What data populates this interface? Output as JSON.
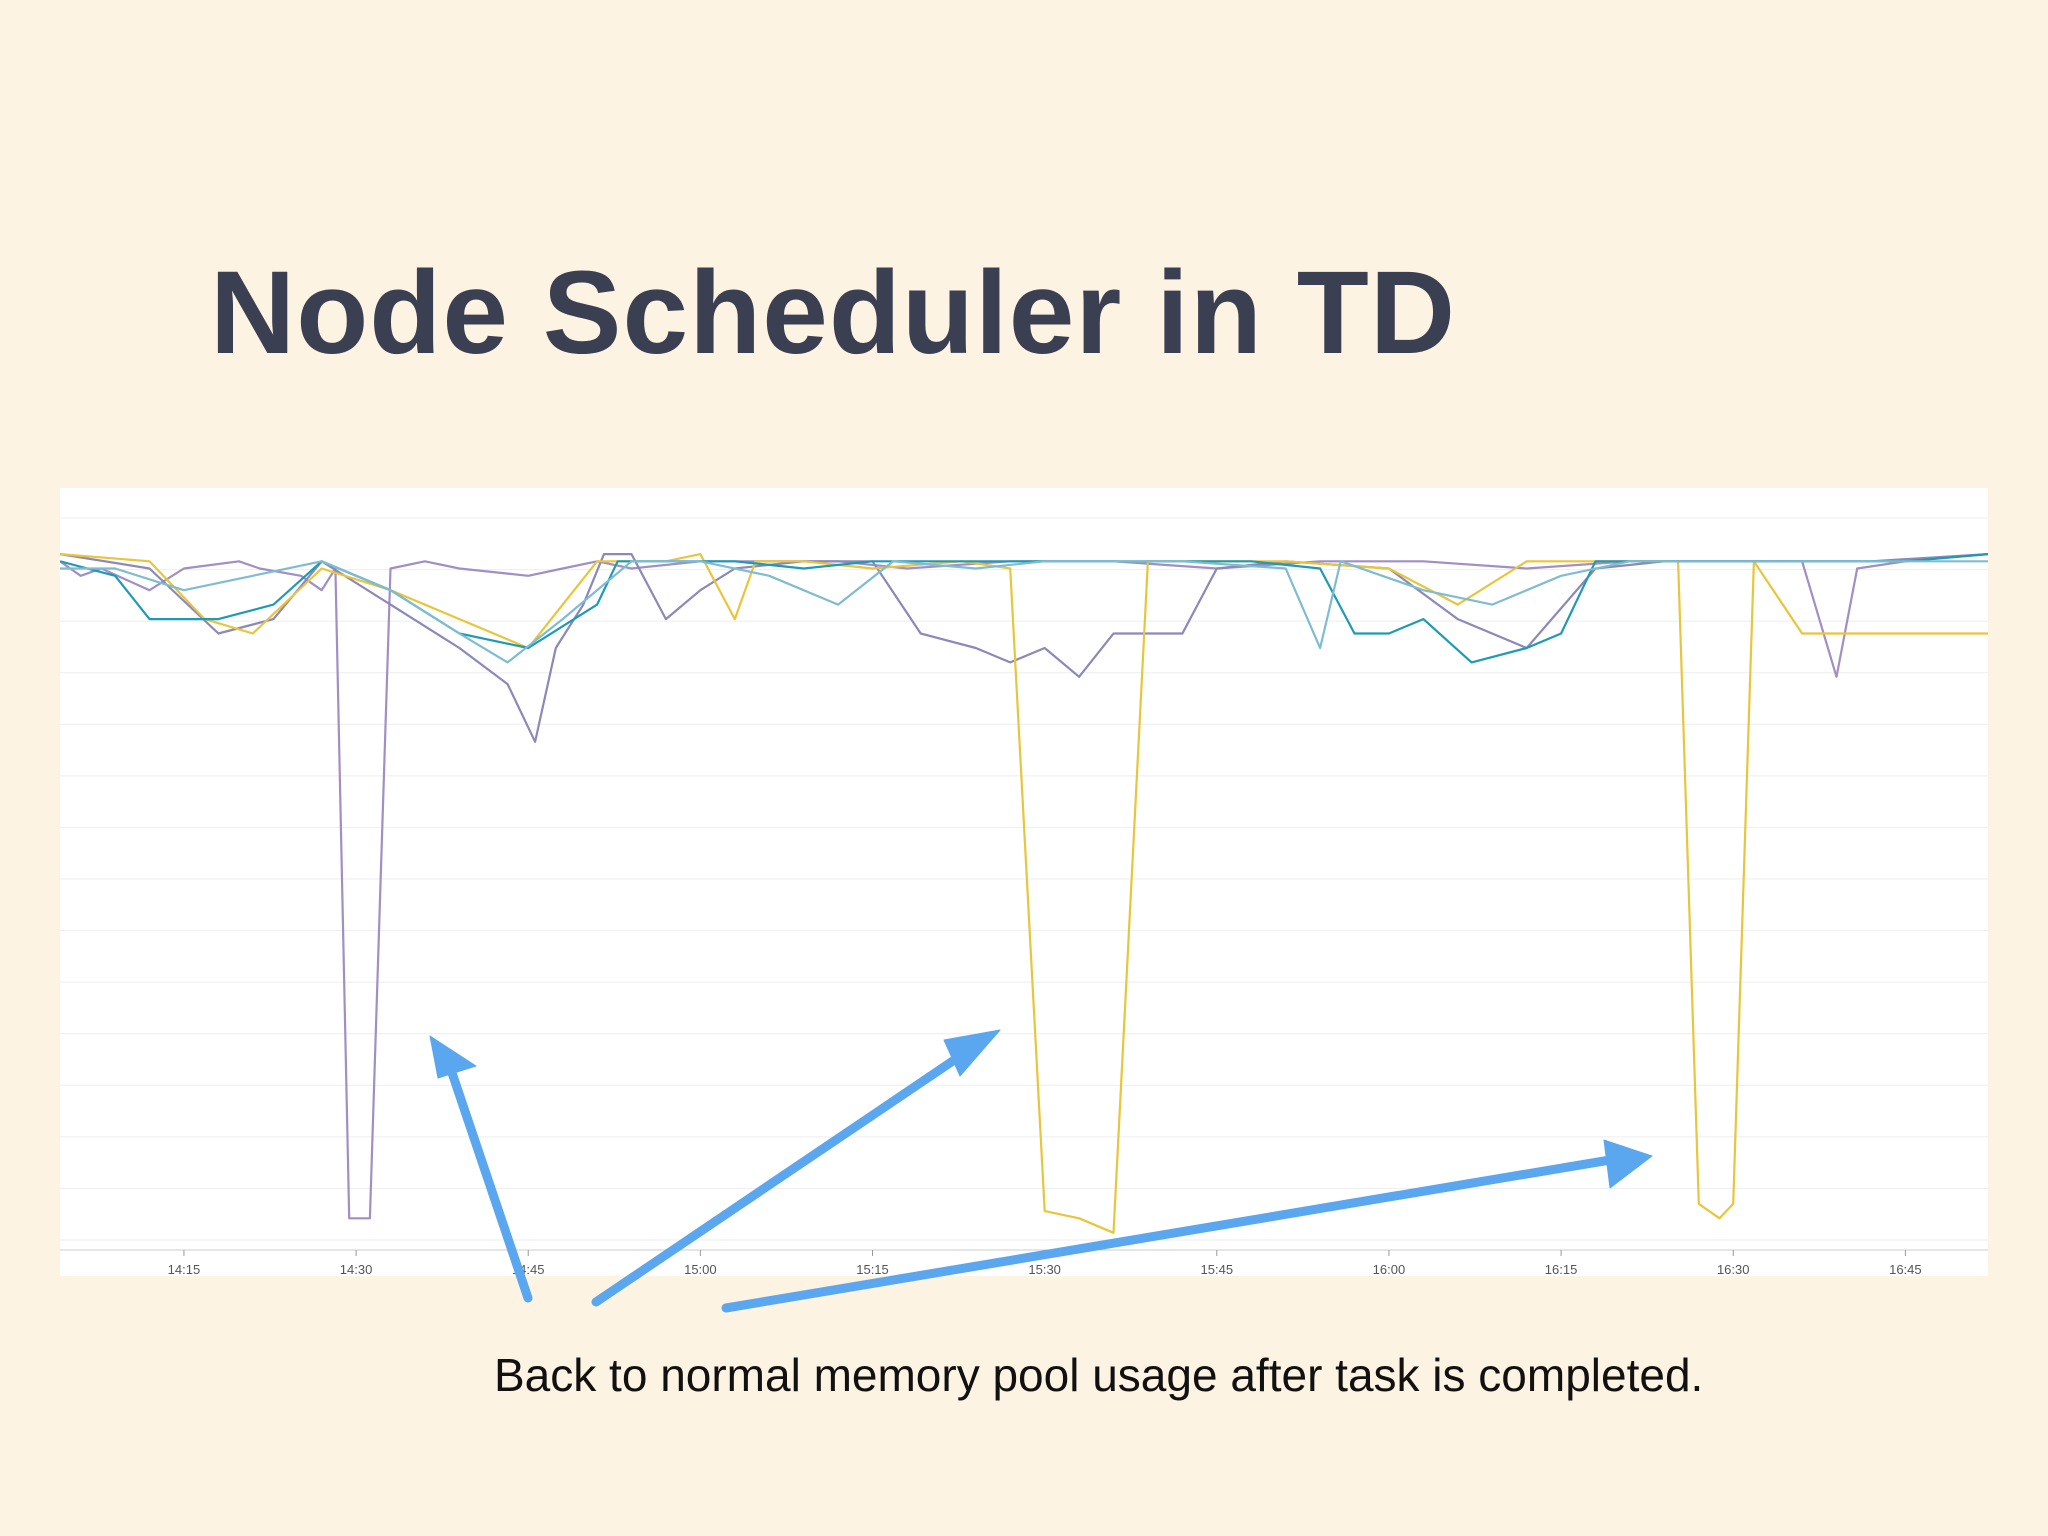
{
  "slide": {
    "title": "Node Scheduler in TD",
    "caption": "Back to normal memory pool usage after task is completed."
  },
  "chart_data": {
    "type": "line",
    "title": "",
    "xlabel": "",
    "ylabel": "",
    "x_ticks": [
      "14:15",
      "14:30",
      "14:45",
      "15:00",
      "15:15",
      "15:30",
      "15:45",
      "16:00",
      "16:15",
      "16:30",
      "16:45"
    ],
    "x_range_minutes": [
      14.07,
      16.87
    ],
    "ylim": [
      0,
      100
    ],
    "grid": true,
    "legend": "none",
    "colors": [
      "#a08fc4",
      "#e8c53a",
      "#1f9ab5",
      "#7fbcd1",
      "#8c88b8"
    ],
    "series": [
      {
        "color": "#a08fc4",
        "points": [
          [
            14.07,
            94
          ],
          [
            14.1,
            92
          ],
          [
            14.13,
            93
          ],
          [
            14.2,
            90
          ],
          [
            14.25,
            93
          ],
          [
            14.33,
            94
          ],
          [
            14.36,
            93
          ],
          [
            14.42,
            92
          ],
          [
            14.45,
            90
          ],
          [
            14.47,
            93
          ],
          [
            14.49,
            3
          ],
          [
            14.52,
            3
          ],
          [
            14.55,
            93
          ],
          [
            14.6,
            94
          ],
          [
            14.65,
            93
          ],
          [
            14.75,
            92
          ],
          [
            14.8,
            93
          ],
          [
            14.85,
            94
          ],
          [
            14.9,
            93
          ],
          [
            15.0,
            94
          ],
          [
            15.2,
            94
          ],
          [
            15.3,
            93
          ],
          [
            15.45,
            94
          ],
          [
            15.6,
            94
          ],
          [
            15.75,
            93
          ],
          [
            15.9,
            94
          ],
          [
            16.05,
            94
          ],
          [
            16.2,
            93
          ],
          [
            16.35,
            94
          ],
          [
            16.5,
            94
          ],
          [
            16.6,
            94
          ],
          [
            16.65,
            78
          ],
          [
            16.68,
            93
          ],
          [
            16.75,
            94
          ],
          [
            16.87,
            95
          ]
        ]
      },
      {
        "color": "#8c88b8",
        "points": [
          [
            14.07,
            95
          ],
          [
            14.2,
            93
          ],
          [
            14.3,
            84
          ],
          [
            14.38,
            86
          ],
          [
            14.45,
            94
          ],
          [
            14.55,
            88
          ],
          [
            14.65,
            82
          ],
          [
            14.72,
            77
          ],
          [
            14.76,
            69
          ],
          [
            14.79,
            82
          ],
          [
            14.83,
            88
          ],
          [
            14.86,
            95
          ],
          [
            14.9,
            95
          ],
          [
            14.95,
            86
          ],
          [
            15.0,
            90
          ],
          [
            15.05,
            93
          ],
          [
            15.15,
            94
          ],
          [
            15.25,
            94
          ],
          [
            15.32,
            84
          ],
          [
            15.4,
            82
          ],
          [
            15.45,
            80
          ],
          [
            15.5,
            82
          ],
          [
            15.55,
            78
          ],
          [
            15.6,
            84
          ],
          [
            15.7,
            84
          ],
          [
            15.75,
            93
          ],
          [
            15.85,
            94
          ],
          [
            16.0,
            93
          ],
          [
            16.1,
            86
          ],
          [
            16.2,
            82
          ],
          [
            16.3,
            93
          ],
          [
            16.4,
            94
          ],
          [
            16.55,
            94
          ],
          [
            16.7,
            94
          ],
          [
            16.87,
            95
          ]
        ]
      },
      {
        "color": "#e8c53a",
        "points": [
          [
            14.07,
            95
          ],
          [
            14.2,
            94
          ],
          [
            14.28,
            86
          ],
          [
            14.35,
            84
          ],
          [
            14.45,
            93
          ],
          [
            14.55,
            90
          ],
          [
            14.65,
            86
          ],
          [
            14.75,
            82
          ],
          [
            14.85,
            94
          ],
          [
            14.95,
            94
          ],
          [
            15.0,
            95
          ],
          [
            15.05,
            86
          ],
          [
            15.08,
            94
          ],
          [
            15.15,
            94
          ],
          [
            15.25,
            93
          ],
          [
            15.38,
            94
          ],
          [
            15.45,
            93
          ],
          [
            15.5,
            4
          ],
          [
            15.55,
            3
          ],
          [
            15.6,
            1
          ],
          [
            15.65,
            94
          ],
          [
            15.75,
            94
          ],
          [
            15.85,
            94
          ],
          [
            16.0,
            93
          ],
          [
            16.1,
            88
          ],
          [
            16.2,
            94
          ],
          [
            16.35,
            94
          ],
          [
            16.42,
            94
          ],
          [
            16.45,
            5
          ],
          [
            16.48,
            3
          ],
          [
            16.5,
            5
          ],
          [
            16.53,
            94
          ],
          [
            16.6,
            84
          ],
          [
            16.7,
            84
          ],
          [
            16.8,
            84
          ],
          [
            16.87,
            84
          ]
        ]
      },
      {
        "color": "#1f9ab5",
        "points": [
          [
            14.07,
            94
          ],
          [
            14.15,
            92
          ],
          [
            14.2,
            86
          ],
          [
            14.3,
            86
          ],
          [
            14.38,
            88
          ],
          [
            14.45,
            94
          ],
          [
            14.55,
            90
          ],
          [
            14.65,
            84
          ],
          [
            14.75,
            82
          ],
          [
            14.85,
            88
          ],
          [
            14.88,
            94
          ],
          [
            14.95,
            94
          ],
          [
            15.05,
            94
          ],
          [
            15.15,
            93
          ],
          [
            15.25,
            94
          ],
          [
            15.4,
            94
          ],
          [
            15.55,
            94
          ],
          [
            15.7,
            94
          ],
          [
            15.8,
            94
          ],
          [
            15.9,
            93
          ],
          [
            15.95,
            84
          ],
          [
            16.0,
            84
          ],
          [
            16.05,
            86
          ],
          [
            16.12,
            80
          ],
          [
            16.2,
            82
          ],
          [
            16.25,
            84
          ],
          [
            16.3,
            94
          ],
          [
            16.45,
            94
          ],
          [
            16.6,
            94
          ],
          [
            16.75,
            94
          ],
          [
            16.87,
            95
          ]
        ]
      },
      {
        "color": "#7fbcd1",
        "points": [
          [
            14.07,
            93
          ],
          [
            14.15,
            93
          ],
          [
            14.25,
            90
          ],
          [
            14.35,
            92
          ],
          [
            14.45,
            94
          ],
          [
            14.55,
            90
          ],
          [
            14.65,
            84
          ],
          [
            14.72,
            80
          ],
          [
            14.8,
            86
          ],
          [
            14.9,
            94
          ],
          [
            15.0,
            94
          ],
          [
            15.1,
            92
          ],
          [
            15.2,
            88
          ],
          [
            15.28,
            94
          ],
          [
            15.4,
            93
          ],
          [
            15.5,
            94
          ],
          [
            15.6,
            94
          ],
          [
            15.7,
            94
          ],
          [
            15.85,
            93
          ],
          [
            15.9,
            82
          ],
          [
            15.93,
            94
          ],
          [
            16.05,
            90
          ],
          [
            16.15,
            88
          ],
          [
            16.25,
            92
          ],
          [
            16.35,
            94
          ],
          [
            16.5,
            94
          ],
          [
            16.65,
            94
          ],
          [
            16.87,
            94
          ]
        ]
      }
    ]
  }
}
